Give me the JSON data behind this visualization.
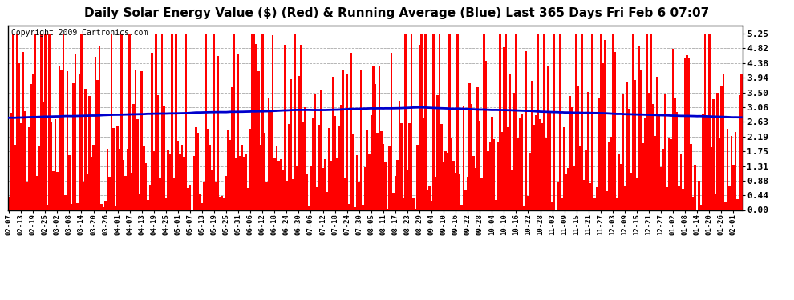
{
  "title": "Daily Solar Energy Value ($) (Red) & Running Average (Blue) Last 365 Days Fri Feb 6 07:07",
  "copyright": "Copyright 2009 Cartronics.com",
  "bar_color": "#ff0000",
  "avg_color": "#0000cc",
  "bg_color": "#ffffff",
  "plot_bg_color": "#ffffff",
  "grid_color": "#aaaaaa",
  "yticks": [
    0.0,
    0.44,
    0.88,
    1.31,
    1.75,
    2.19,
    2.63,
    3.06,
    3.5,
    3.94,
    4.38,
    4.82,
    5.25
  ],
  "ylim": [
    0.0,
    5.5
  ],
  "title_fontsize": 11,
  "copyright_fontsize": 7,
  "tick_fontsize": 8,
  "xtick_fontsize": 6.5,
  "x_labels": [
    "02-07",
    "02-13",
    "02-19",
    "02-25",
    "03-02",
    "03-08",
    "03-14",
    "03-20",
    "03-26",
    "04-01",
    "04-07",
    "04-13",
    "04-19",
    "04-25",
    "05-01",
    "05-07",
    "05-13",
    "05-19",
    "05-25",
    "05-31",
    "06-06",
    "06-12",
    "06-18",
    "06-24",
    "06-30",
    "07-06",
    "07-12",
    "07-18",
    "07-24",
    "07-30",
    "08-05",
    "08-11",
    "08-17",
    "08-23",
    "08-29",
    "09-04",
    "09-10",
    "09-16",
    "09-22",
    "09-28",
    "10-04",
    "10-10",
    "10-16",
    "10-22",
    "10-28",
    "11-03",
    "11-09",
    "11-15",
    "11-21",
    "11-27",
    "12-03",
    "12-09",
    "12-15",
    "12-21",
    "12-27",
    "01-02",
    "01-08",
    "01-14",
    "01-20",
    "01-26",
    "02-01"
  ]
}
